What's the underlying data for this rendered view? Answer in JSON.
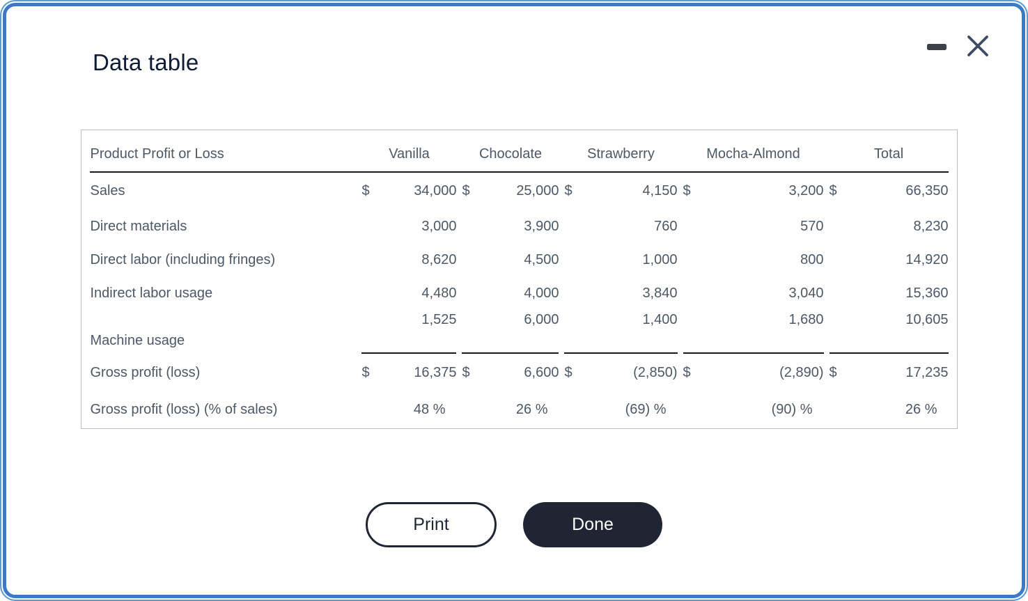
{
  "window": {
    "title": "Data table",
    "minimize_label": "minimize",
    "close_label": "close"
  },
  "table": {
    "corner_label": "Product Profit or Loss",
    "columns": [
      "Vanilla",
      "Chocolate",
      "Strawberry",
      "Mocha-Almond",
      "Total"
    ],
    "currency_symbol": "$",
    "rows": [
      {
        "label": "Sales",
        "dollar": true,
        "values": [
          "34,000",
          "25,000",
          "4,150",
          "3,200",
          "66,350"
        ]
      },
      {
        "label": "Direct materials",
        "dollar": false,
        "values": [
          "3,000",
          "3,900",
          "760",
          "570",
          "8,230"
        ]
      },
      {
        "label": "Direct labor (including fringes)",
        "dollar": false,
        "values": [
          "8,620",
          "4,500",
          "1,000",
          "800",
          "14,920"
        ]
      },
      {
        "label": "Indirect labor usage",
        "dollar": false,
        "values": [
          "4,480",
          "4,000",
          "3,840",
          "3,040",
          "15,360"
        ]
      },
      {
        "label": "Machine usage",
        "dollar": false,
        "underline": true,
        "values": [
          "1,525",
          "6,000",
          "1,400",
          "1,680",
          "10,605"
        ]
      },
      {
        "label": "Gross profit (loss)",
        "dollar": true,
        "values": [
          "16,375",
          "6,600",
          "(2,850)",
          "(2,890)",
          "17,235"
        ]
      },
      {
        "label": "Gross profit (loss) (% of sales)",
        "dollar": false,
        "percent": true,
        "values": [
          "48 %",
          "26 %",
          "(69) %",
          "(90) %",
          "26 %"
        ]
      }
    ]
  },
  "buttons": {
    "print": "Print",
    "done": "Done"
  },
  "colors": {
    "frame_outer_blue": "#5b9bd5",
    "frame_inner_blue": "#3b7ac7",
    "title_text": "#0e1c38",
    "table_text": "#4d5866",
    "rule_black": "#1a1a1a",
    "button_dark": "#1f2533"
  }
}
